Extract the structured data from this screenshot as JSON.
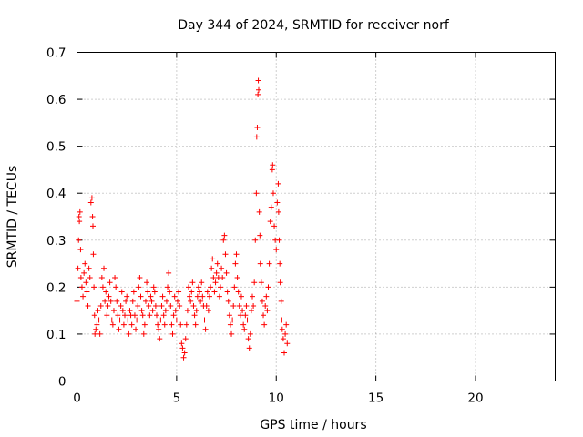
{
  "chart_data": {
    "type": "scatter",
    "title": "Day 344 of 2024, SRMTID for receiver norf",
    "xlabel": "GPS time / hours",
    "ylabel": "SRMTID / TECUs",
    "xlim": [
      0,
      24
    ],
    "ylim": [
      0,
      0.7
    ],
    "xticks": [
      0,
      5,
      10,
      15,
      20
    ],
    "yticks": [
      0,
      0.1,
      0.2,
      0.3,
      0.4,
      0.5,
      0.6,
      0.7
    ],
    "marker": "+",
    "grid": true,
    "colors": {
      "series": "#ff0000",
      "grid": "#a0a0a0",
      "axis": "#000000"
    },
    "series": [
      {
        "name": "SRMTID",
        "points": [
          [
            0.0,
            0.17
          ],
          [
            0.05,
            0.24
          ],
          [
            0.08,
            0.3
          ],
          [
            0.1,
            0.35
          ],
          [
            0.12,
            0.34
          ],
          [
            0.15,
            0.36
          ],
          [
            0.18,
            0.28
          ],
          [
            0.2,
            0.22
          ],
          [
            0.25,
            0.2
          ],
          [
            0.3,
            0.18
          ],
          [
            0.35,
            0.23
          ],
          [
            0.4,
            0.25
          ],
          [
            0.45,
            0.21
          ],
          [
            0.5,
            0.19
          ],
          [
            0.55,
            0.16
          ],
          [
            0.6,
            0.24
          ],
          [
            0.65,
            0.22
          ],
          [
            0.7,
            0.38
          ],
          [
            0.75,
            0.39
          ],
          [
            0.78,
            0.35
          ],
          [
            0.8,
            0.33
          ],
          [
            0.82,
            0.27
          ],
          [
            0.85,
            0.2
          ],
          [
            0.88,
            0.14
          ],
          [
            0.9,
            0.1
          ],
          [
            0.95,
            0.11
          ],
          [
            1.0,
            0.12
          ],
          [
            1.05,
            0.15
          ],
          [
            1.1,
            0.13
          ],
          [
            1.15,
            0.1
          ],
          [
            1.2,
            0.16
          ],
          [
            1.25,
            0.22
          ],
          [
            1.3,
            0.2
          ],
          [
            1.35,
            0.24
          ],
          [
            1.4,
            0.17
          ],
          [
            1.45,
            0.19
          ],
          [
            1.5,
            0.14
          ],
          [
            1.55,
            0.16
          ],
          [
            1.6,
            0.18
          ],
          [
            1.65,
            0.21
          ],
          [
            1.7,
            0.17
          ],
          [
            1.75,
            0.13
          ],
          [
            1.8,
            0.12
          ],
          [
            1.85,
            0.15
          ],
          [
            1.9,
            0.22
          ],
          [
            1.95,
            0.2
          ],
          [
            2.0,
            0.17
          ],
          [
            2.05,
            0.14
          ],
          [
            2.1,
            0.11
          ],
          [
            2.15,
            0.13
          ],
          [
            2.2,
            0.16
          ],
          [
            2.25,
            0.19
          ],
          [
            2.3,
            0.15
          ],
          [
            2.35,
            0.12
          ],
          [
            2.4,
            0.14
          ],
          [
            2.45,
            0.17
          ],
          [
            2.5,
            0.18
          ],
          [
            2.55,
            0.13
          ],
          [
            2.6,
            0.1
          ],
          [
            2.65,
            0.15
          ],
          [
            2.7,
            0.14
          ],
          [
            2.75,
            0.12
          ],
          [
            2.8,
            0.17
          ],
          [
            2.85,
            0.19
          ],
          [
            2.9,
            0.14
          ],
          [
            2.95,
            0.11
          ],
          [
            3.0,
            0.13
          ],
          [
            3.05,
            0.16
          ],
          [
            3.1,
            0.2
          ],
          [
            3.15,
            0.22
          ],
          [
            3.2,
            0.18
          ],
          [
            3.25,
            0.15
          ],
          [
            3.3,
            0.14
          ],
          [
            3.35,
            0.1
          ],
          [
            3.4,
            0.12
          ],
          [
            3.45,
            0.17
          ],
          [
            3.5,
            0.21
          ],
          [
            3.55,
            0.19
          ],
          [
            3.6,
            0.16
          ],
          [
            3.65,
            0.14
          ],
          [
            3.7,
            0.18
          ],
          [
            3.75,
            0.17
          ],
          [
            3.8,
            0.15
          ],
          [
            3.85,
            0.2
          ],
          [
            3.9,
            0.19
          ],
          [
            3.95,
            0.16
          ],
          [
            4.0,
            0.14
          ],
          [
            4.05,
            0.12
          ],
          [
            4.1,
            0.11
          ],
          [
            4.15,
            0.09
          ],
          [
            4.2,
            0.13
          ],
          [
            4.25,
            0.16
          ],
          [
            4.3,
            0.18
          ],
          [
            4.35,
            0.14
          ],
          [
            4.4,
            0.12
          ],
          [
            4.45,
            0.15
          ],
          [
            4.5,
            0.17
          ],
          [
            4.55,
            0.2
          ],
          [
            4.6,
            0.23
          ],
          [
            4.65,
            0.19
          ],
          [
            4.7,
            0.16
          ],
          [
            4.75,
            0.12
          ],
          [
            4.8,
            0.1
          ],
          [
            4.85,
            0.14
          ],
          [
            4.9,
            0.18
          ],
          [
            4.95,
            0.15
          ],
          [
            5.0,
            0.13
          ],
          [
            5.05,
            0.17
          ],
          [
            5.1,
            0.19
          ],
          [
            5.15,
            0.16
          ],
          [
            5.2,
            0.12
          ],
          [
            5.25,
            0.08
          ],
          [
            5.3,
            0.07
          ],
          [
            5.35,
            0.05
          ],
          [
            5.4,
            0.06
          ],
          [
            5.45,
            0.09
          ],
          [
            5.5,
            0.12
          ],
          [
            5.55,
            0.15
          ],
          [
            5.6,
            0.2
          ],
          [
            5.65,
            0.18
          ],
          [
            5.7,
            0.17
          ],
          [
            5.75,
            0.19
          ],
          [
            5.8,
            0.21
          ],
          [
            5.85,
            0.16
          ],
          [
            5.9,
            0.14
          ],
          [
            5.95,
            0.12
          ],
          [
            6.0,
            0.15
          ],
          [
            6.05,
            0.18
          ],
          [
            6.1,
            0.2
          ],
          [
            6.15,
            0.19
          ],
          [
            6.2,
            0.17
          ],
          [
            6.25,
            0.21
          ],
          [
            6.3,
            0.18
          ],
          [
            6.35,
            0.16
          ],
          [
            6.4,
            0.13
          ],
          [
            6.45,
            0.11
          ],
          [
            6.5,
            0.16
          ],
          [
            6.55,
            0.19
          ],
          [
            6.6,
            0.15
          ],
          [
            6.65,
            0.18
          ],
          [
            6.7,
            0.2
          ],
          [
            6.75,
            0.24
          ],
          [
            6.8,
            0.26
          ],
          [
            6.85,
            0.22
          ],
          [
            6.9,
            0.19
          ],
          [
            6.95,
            0.21
          ],
          [
            7.0,
            0.23
          ],
          [
            7.05,
            0.25
          ],
          [
            7.1,
            0.22
          ],
          [
            7.15,
            0.18
          ],
          [
            7.2,
            0.2
          ],
          [
            7.25,
            0.24
          ],
          [
            7.3,
            0.22
          ],
          [
            7.35,
            0.3
          ],
          [
            7.4,
            0.31
          ],
          [
            7.45,
            0.27
          ],
          [
            7.5,
            0.23
          ],
          [
            7.55,
            0.19
          ],
          [
            7.6,
            0.17
          ],
          [
            7.65,
            0.14
          ],
          [
            7.7,
            0.12
          ],
          [
            7.75,
            0.1
          ],
          [
            7.8,
            0.13
          ],
          [
            7.85,
            0.16
          ],
          [
            7.9,
            0.2
          ],
          [
            7.95,
            0.25
          ],
          [
            8.0,
            0.27
          ],
          [
            8.05,
            0.22
          ],
          [
            8.1,
            0.19
          ],
          [
            8.15,
            0.16
          ],
          [
            8.2,
            0.14
          ],
          [
            8.25,
            0.18
          ],
          [
            8.3,
            0.15
          ],
          [
            8.35,
            0.12
          ],
          [
            8.4,
            0.11
          ],
          [
            8.45,
            0.14
          ],
          [
            8.5,
            0.16
          ],
          [
            8.55,
            0.13
          ],
          [
            8.6,
            0.09
          ],
          [
            8.65,
            0.07
          ],
          [
            8.7,
            0.1
          ],
          [
            8.75,
            0.15
          ],
          [
            8.8,
            0.18
          ],
          [
            8.85,
            0.16
          ],
          [
            8.9,
            0.21
          ],
          [
            8.95,
            0.3
          ],
          [
            9.0,
            0.4
          ],
          [
            9.02,
            0.52
          ],
          [
            9.05,
            0.54
          ],
          [
            9.08,
            0.61
          ],
          [
            9.1,
            0.64
          ],
          [
            9.12,
            0.62
          ],
          [
            9.15,
            0.36
          ],
          [
            9.18,
            0.31
          ],
          [
            9.2,
            0.25
          ],
          [
            9.25,
            0.21
          ],
          [
            9.3,
            0.17
          ],
          [
            9.35,
            0.14
          ],
          [
            9.4,
            0.12
          ],
          [
            9.45,
            0.16
          ],
          [
            9.5,
            0.18
          ],
          [
            9.55,
            0.15
          ],
          [
            9.6,
            0.2
          ],
          [
            9.65,
            0.25
          ],
          [
            9.7,
            0.34
          ],
          [
            9.75,
            0.37
          ],
          [
            9.8,
            0.45
          ],
          [
            9.82,
            0.46
          ],
          [
            9.85,
            0.4
          ],
          [
            9.9,
            0.33
          ],
          [
            9.95,
            0.3
          ],
          [
            10.0,
            0.28
          ],
          [
            10.05,
            0.38
          ],
          [
            10.1,
            0.42
          ],
          [
            10.12,
            0.36
          ],
          [
            10.15,
            0.3
          ],
          [
            10.18,
            0.25
          ],
          [
            10.2,
            0.21
          ],
          [
            10.25,
            0.17
          ],
          [
            10.28,
            0.13
          ],
          [
            10.3,
            0.11
          ],
          [
            10.35,
            0.09
          ],
          [
            10.4,
            0.06
          ],
          [
            10.45,
            0.1
          ],
          [
            10.5,
            0.12
          ],
          [
            10.55,
            0.08
          ]
        ]
      }
    ]
  }
}
